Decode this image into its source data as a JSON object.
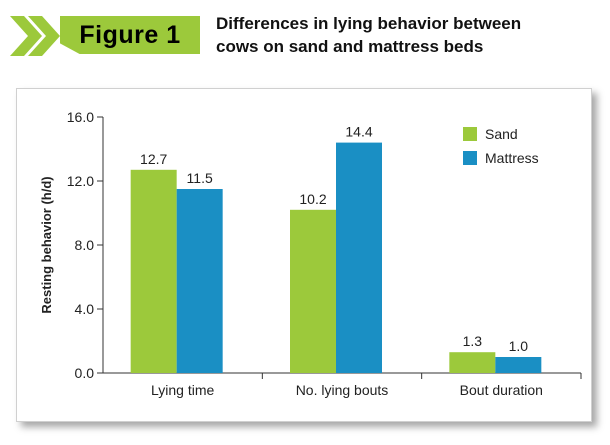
{
  "figure": {
    "badge": "Figure 1",
    "title_line1": "Differences in lying behavior between",
    "title_line2": "cows on sand and mattress beds"
  },
  "colors": {
    "Sand": "#9cc93b",
    "Mattress": "#1a8fc4",
    "badge_bg": "#9cc93b",
    "chevron": "#9cc93b"
  },
  "chart_data": {
    "type": "bar",
    "title": "Differences in lying behavior between cows on sand and mattress beds",
    "categories": [
      "Lying time",
      "No. lying bouts",
      "Bout duration"
    ],
    "series": [
      {
        "name": "Sand",
        "values": [
          12.7,
          10.2,
          1.3
        ],
        "labels": [
          "12.7",
          "10.2",
          "1.3"
        ]
      },
      {
        "name": "Mattress",
        "values": [
          11.5,
          14.4,
          1.0
        ],
        "labels": [
          "11.5",
          "14.4",
          "1.0"
        ]
      }
    ],
    "ylabel": "Resting behavior (h/d)",
    "xlabel": "",
    "ylim": [
      0,
      16
    ],
    "yticks": [
      0,
      4,
      8,
      12,
      16
    ],
    "ytick_labels": [
      "0.0",
      "4.0",
      "8.0",
      "12.0",
      "16.0"
    ],
    "grid": false,
    "legend": "top-right"
  }
}
